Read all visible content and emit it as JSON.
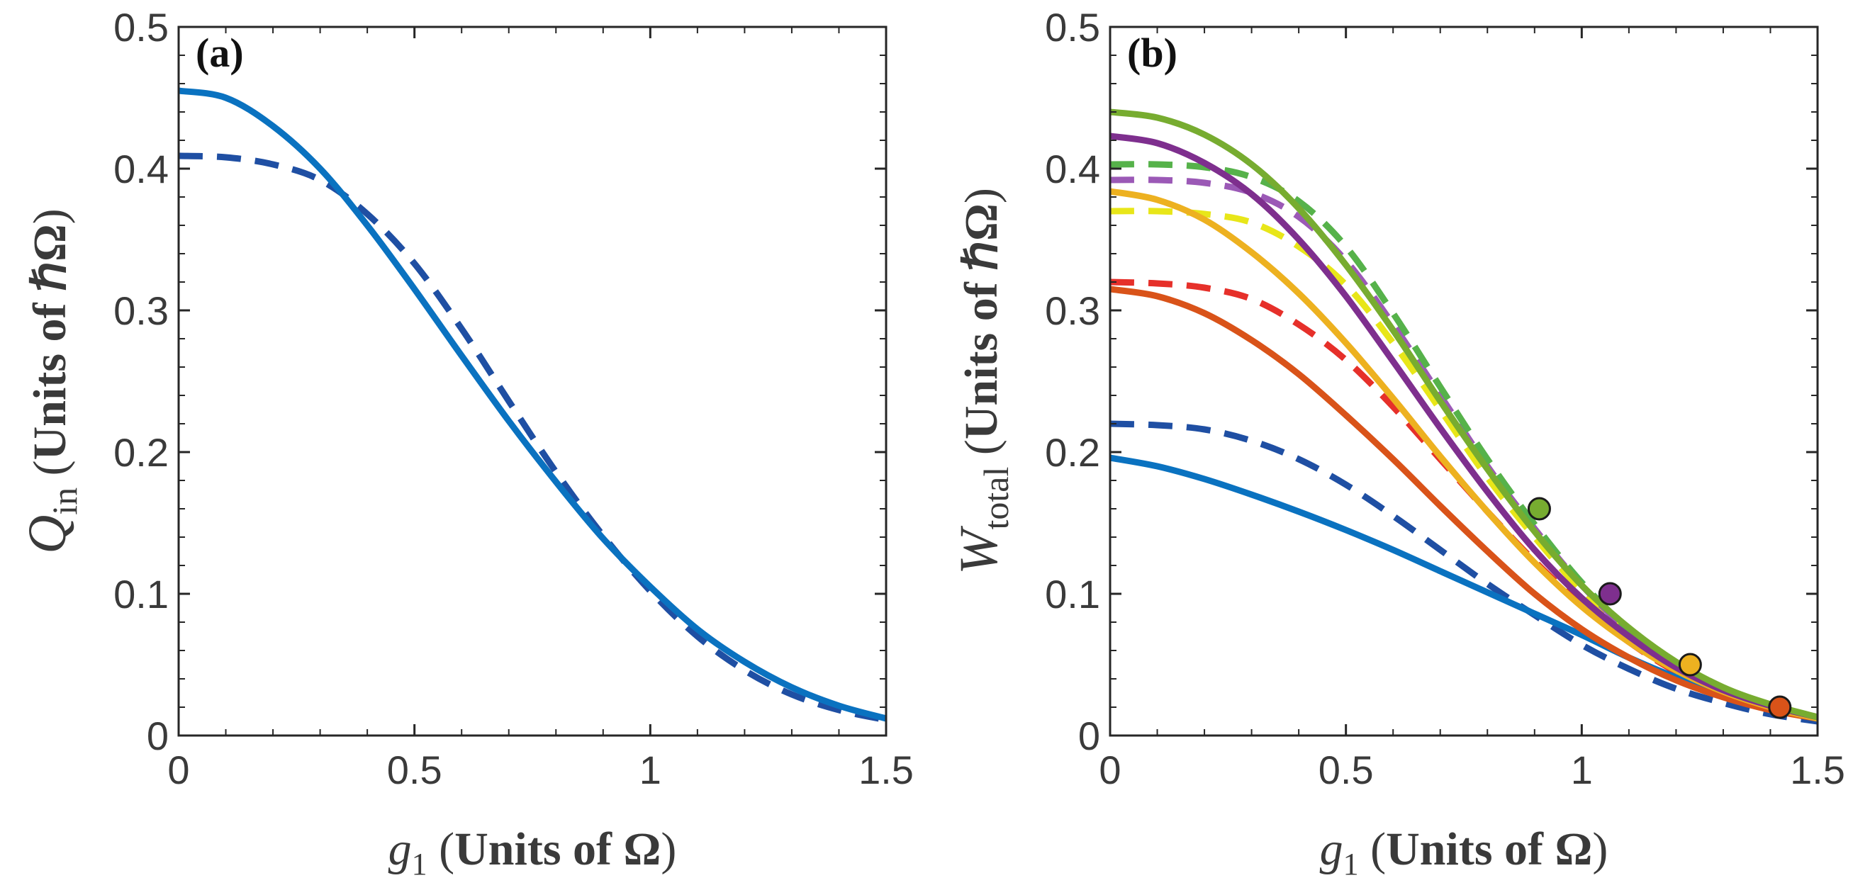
{
  "chart_data": [
    {
      "type": "line",
      "panel": "(a)",
      "xlabel": {
        "var": "g",
        "sub": "1",
        "unit_open": " (",
        "unit_text": "Units of Ω",
        "unit_close": ")"
      },
      "ylabel": {
        "var": "Q",
        "sub": "in",
        "unit_open": " (",
        "unit_text": "Units of ℏΩ",
        "unit_close": ")"
      },
      "xlim": [
        0,
        1.5
      ],
      "ylim": [
        0,
        0.5
      ],
      "xticks": [
        0,
        0.5,
        1,
        1.5
      ],
      "xtick_labels": [
        "0",
        "0.5",
        "1",
        "1.5"
      ],
      "yticks": [
        0,
        0.1,
        0.2,
        0.3,
        0.4,
        0.5
      ],
      "ytick_labels": [
        "0",
        "0.1",
        "0.2",
        "0.3",
        "0.4",
        "0.5"
      ],
      "series": [
        {
          "name": "dashed-blue",
          "style": "dashed",
          "color": "#1f4fa3",
          "x": [
            0,
            0.1,
            0.2,
            0.3,
            0.4,
            0.5,
            0.6,
            0.7,
            0.8,
            0.9,
            1.0,
            1.1,
            1.2,
            1.3,
            1.4,
            1.5
          ],
          "y": [
            0.409,
            0.408,
            0.403,
            0.392,
            0.368,
            0.333,
            0.287,
            0.236,
            0.186,
            0.141,
            0.102,
            0.07,
            0.046,
            0.029,
            0.018,
            0.011
          ]
        },
        {
          "name": "solid-blue",
          "style": "solid",
          "color": "#0a72c0",
          "x": [
            0,
            0.1,
            0.2,
            0.3,
            0.4,
            0.5,
            0.6,
            0.7,
            0.8,
            0.9,
            1.0,
            1.1,
            1.2,
            1.3,
            1.4,
            1.5
          ],
          "y": [
            0.455,
            0.45,
            0.43,
            0.4,
            0.36,
            0.315,
            0.268,
            0.222,
            0.179,
            0.139,
            0.105,
            0.075,
            0.052,
            0.034,
            0.021,
            0.012
          ]
        }
      ]
    },
    {
      "type": "line",
      "panel": "(b)",
      "xlabel": {
        "var": "g",
        "sub": "1",
        "unit_open": " (",
        "unit_text": "Units of Ω",
        "unit_close": ")"
      },
      "ylabel": {
        "var": "W",
        "sub": "total",
        "unit_open": " (",
        "unit_text": "Units of ℏΩ",
        "unit_close": ")"
      },
      "xlim": [
        0,
        1.5
      ],
      "ylim": [
        0,
        0.5
      ],
      "xticks": [
        0,
        0.5,
        1,
        1.5
      ],
      "xtick_labels": [
        "0",
        "0.5",
        "1",
        "1.5"
      ],
      "yticks": [
        0,
        0.1,
        0.2,
        0.3,
        0.4,
        0.5
      ],
      "ytick_labels": [
        "0",
        "0.1",
        "0.2",
        "0.3",
        "0.4",
        "0.5"
      ],
      "series": [
        {
          "name": "dashed-yellow",
          "style": "dashed",
          "color": "#e8e619",
          "x": [
            0,
            0.1,
            0.2,
            0.3,
            0.4,
            0.5,
            0.6,
            0.7,
            0.8,
            0.9,
            1.0,
            1.1,
            1.2,
            1.3,
            1.4,
            1.5
          ],
          "y": [
            0.37,
            0.37,
            0.368,
            0.362,
            0.345,
            0.318,
            0.277,
            0.23,
            0.182,
            0.14,
            0.102,
            0.07,
            0.048,
            0.031,
            0.02,
            0.012
          ]
        },
        {
          "name": "dashed-purple",
          "style": "dashed",
          "color": "#9b59b6",
          "x": [
            0,
            0.1,
            0.2,
            0.3,
            0.4,
            0.5,
            0.6,
            0.7,
            0.8,
            0.9,
            1.0,
            1.1,
            1.2,
            1.3,
            1.4,
            1.5
          ],
          "y": [
            0.392,
            0.392,
            0.39,
            0.383,
            0.366,
            0.335,
            0.29,
            0.24,
            0.19,
            0.146,
            0.106,
            0.074,
            0.05,
            0.033,
            0.021,
            0.013
          ]
        },
        {
          "name": "dashed-green",
          "style": "dashed",
          "color": "#56b24a",
          "x": [
            0,
            0.1,
            0.2,
            0.3,
            0.4,
            0.5,
            0.6,
            0.7,
            0.8,
            0.9,
            1.0,
            1.1,
            1.2,
            1.3,
            1.4,
            1.5
          ],
          "y": [
            0.403,
            0.403,
            0.401,
            0.394,
            0.377,
            0.345,
            0.298,
            0.246,
            0.195,
            0.149,
            0.108,
            0.075,
            0.051,
            0.033,
            0.021,
            0.013
          ]
        },
        {
          "name": "dashed-red",
          "style": "dashed",
          "color": "#e6302a",
          "x": [
            0,
            0.1,
            0.2,
            0.3,
            0.4,
            0.5,
            0.6,
            0.7,
            0.8,
            0.9,
            1.0,
            1.1,
            1.2,
            1.3,
            1.4,
            1.5
          ],
          "y": [
            0.32,
            0.319,
            0.316,
            0.308,
            0.29,
            0.265,
            0.232,
            0.195,
            0.158,
            0.123,
            0.092,
            0.066,
            0.045,
            0.03,
            0.019,
            0.012
          ]
        },
        {
          "name": "dashed-blue",
          "style": "dashed",
          "color": "#1f4fa3",
          "x": [
            0,
            0.1,
            0.2,
            0.3,
            0.4,
            0.5,
            0.6,
            0.7,
            0.8,
            0.9,
            1.0,
            1.1,
            1.2,
            1.3,
            1.4,
            1.5
          ],
          "y": [
            0.22,
            0.219,
            0.216,
            0.208,
            0.195,
            0.177,
            0.155,
            0.131,
            0.107,
            0.085,
            0.064,
            0.047,
            0.033,
            0.023,
            0.015,
            0.01
          ]
        },
        {
          "name": "solid-blue",
          "style": "solid",
          "color": "#0a72c0",
          "x": [
            0,
            0.1,
            0.2,
            0.3,
            0.4,
            0.5,
            0.6,
            0.7,
            0.8,
            0.9,
            1.0,
            1.1,
            1.2,
            1.3,
            1.4,
            1.5
          ],
          "y": [
            0.196,
            0.19,
            0.181,
            0.17,
            0.158,
            0.145,
            0.131,
            0.116,
            0.101,
            0.086,
            0.071,
            0.055,
            0.041,
            0.029,
            0.019,
            0.012
          ]
        },
        {
          "name": "solid-red-orange",
          "style": "solid",
          "color": "#d95319",
          "x": [
            0,
            0.1,
            0.2,
            0.3,
            0.4,
            0.5,
            0.6,
            0.7,
            0.8,
            0.9,
            1.0,
            1.1,
            1.2,
            1.3,
            1.4,
            1.5
          ],
          "y": [
            0.315,
            0.31,
            0.298,
            0.279,
            0.255,
            0.226,
            0.195,
            0.162,
            0.13,
            0.1,
            0.075,
            0.055,
            0.039,
            0.027,
            0.018,
            0.012
          ]
        },
        {
          "name": "solid-orange",
          "style": "solid",
          "color": "#edb120",
          "x": [
            0,
            0.1,
            0.2,
            0.3,
            0.4,
            0.5,
            0.6,
            0.7,
            0.8,
            0.9,
            1.0,
            1.1,
            1.2,
            1.3,
            1.4,
            1.5
          ],
          "y": [
            0.384,
            0.378,
            0.364,
            0.341,
            0.312,
            0.277,
            0.238,
            0.197,
            0.158,
            0.122,
            0.091,
            0.066,
            0.046,
            0.031,
            0.02,
            0.012
          ]
        },
        {
          "name": "solid-purple",
          "style": "solid",
          "color": "#7e2f8e",
          "x": [
            0,
            0.1,
            0.2,
            0.3,
            0.4,
            0.5,
            0.6,
            0.7,
            0.8,
            0.9,
            1.0,
            1.1,
            1.2,
            1.3,
            1.4,
            1.5
          ],
          "y": [
            0.423,
            0.418,
            0.404,
            0.382,
            0.35,
            0.31,
            0.264,
            0.217,
            0.172,
            0.131,
            0.097,
            0.07,
            0.048,
            0.032,
            0.021,
            0.013
          ]
        },
        {
          "name": "solid-green",
          "style": "solid",
          "color": "#77ac30",
          "x": [
            0,
            0.1,
            0.2,
            0.3,
            0.4,
            0.5,
            0.6,
            0.7,
            0.8,
            0.9,
            1.0,
            1.1,
            1.2,
            1.3,
            1.4,
            1.5
          ],
          "y": [
            0.44,
            0.436,
            0.424,
            0.403,
            0.372,
            0.332,
            0.286,
            0.236,
            0.188,
            0.144,
            0.106,
            0.076,
            0.052,
            0.034,
            0.022,
            0.013
          ]
        }
      ],
      "markers": [
        {
          "name": "marker-green",
          "x": 0.91,
          "y": 0.16,
          "color": "#77ac30"
        },
        {
          "name": "marker-purple",
          "x": 1.06,
          "y": 0.1,
          "color": "#7e2f8e"
        },
        {
          "name": "marker-orange",
          "x": 1.23,
          "y": 0.05,
          "color": "#edb120"
        },
        {
          "name": "marker-red-orange",
          "x": 1.42,
          "y": 0.02,
          "color": "#d95319"
        }
      ]
    }
  ]
}
